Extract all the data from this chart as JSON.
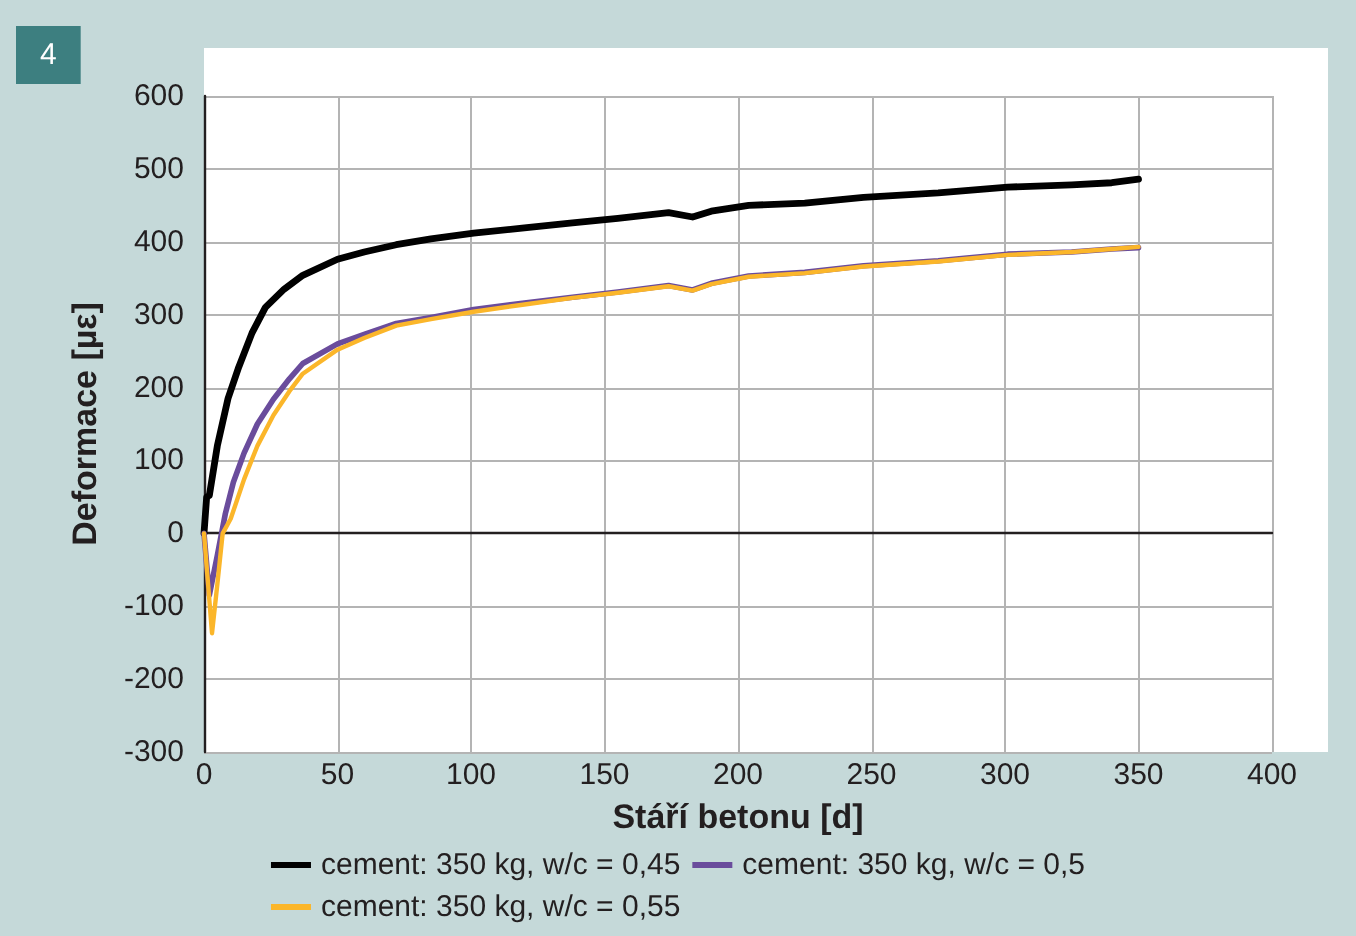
{
  "chart_data": {
    "type": "line",
    "xlabel": "Stáří betonu [d]",
    "ylabel": "Deformace [µε]",
    "annotations": [
      "4"
    ],
    "xlim": [
      0,
      400
    ],
    "xticks": [
      0,
      50,
      100,
      150,
      200,
      250,
      300,
      350,
      400
    ],
    "ylim": [
      -300,
      600
    ],
    "yticks": [
      -300,
      -200,
      -100,
      0,
      100,
      200,
      300,
      400,
      500,
      600
    ],
    "grid": true,
    "legend": "bottom",
    "marker": "none",
    "line_style": "solid",
    "series": [
      {
        "name": "cement: 350 kg, w/c = 0,45",
        "color": "#000000",
        "x": [
          0,
          1,
          2,
          5,
          9,
          13,
          18,
          23,
          30,
          37,
          50,
          60,
          72,
          85,
          101,
          120,
          138,
          155,
          174,
          183,
          190,
          204,
          225,
          247,
          275,
          301,
          325,
          340,
          350
        ],
        "values": [
          0,
          50,
          52,
          120,
          185,
          228,
          275,
          310,
          335,
          354,
          376,
          386,
          396,
          404,
          412,
          419,
          426,
          432,
          440,
          434,
          442,
          450,
          453,
          461,
          467,
          475,
          478,
          481,
          486
        ]
      },
      {
        "name": "cement: 350 kg, w/c = 0,5",
        "color": "#6a4c9c",
        "x": [
          0,
          2,
          5,
          8,
          11,
          15,
          20,
          26,
          32,
          37,
          50,
          60,
          72,
          85,
          101,
          120,
          138,
          155,
          174,
          183,
          190,
          204,
          225,
          247,
          275,
          301,
          325,
          340,
          350
        ],
        "values": [
          0,
          -85,
          -30,
          27,
          70,
          110,
          150,
          184,
          212,
          233,
          260,
          273,
          288,
          296,
          307,
          316,
          324,
          331,
          340,
          334,
          343,
          353,
          358,
          367,
          374,
          383,
          386,
          390,
          392
        ]
      },
      {
        "name": "cement: 350 kg, w/c = 0,55",
        "color": "#fbb62a",
        "x": [
          0,
          3,
          5,
          7,
          10,
          15,
          20,
          26,
          32,
          37,
          50,
          60,
          72,
          85,
          101,
          120,
          138,
          155,
          174,
          183,
          190,
          204,
          225,
          247,
          275,
          301,
          325,
          340,
          350
        ],
        "values": [
          0,
          -137,
          -70,
          0,
          20,
          74,
          120,
          162,
          195,
          219,
          252,
          268,
          285,
          294,
          304,
          314,
          323,
          330,
          339,
          333,
          342,
          352,
          357,
          366,
          373,
          382,
          386,
          390,
          393
        ]
      }
    ]
  }
}
